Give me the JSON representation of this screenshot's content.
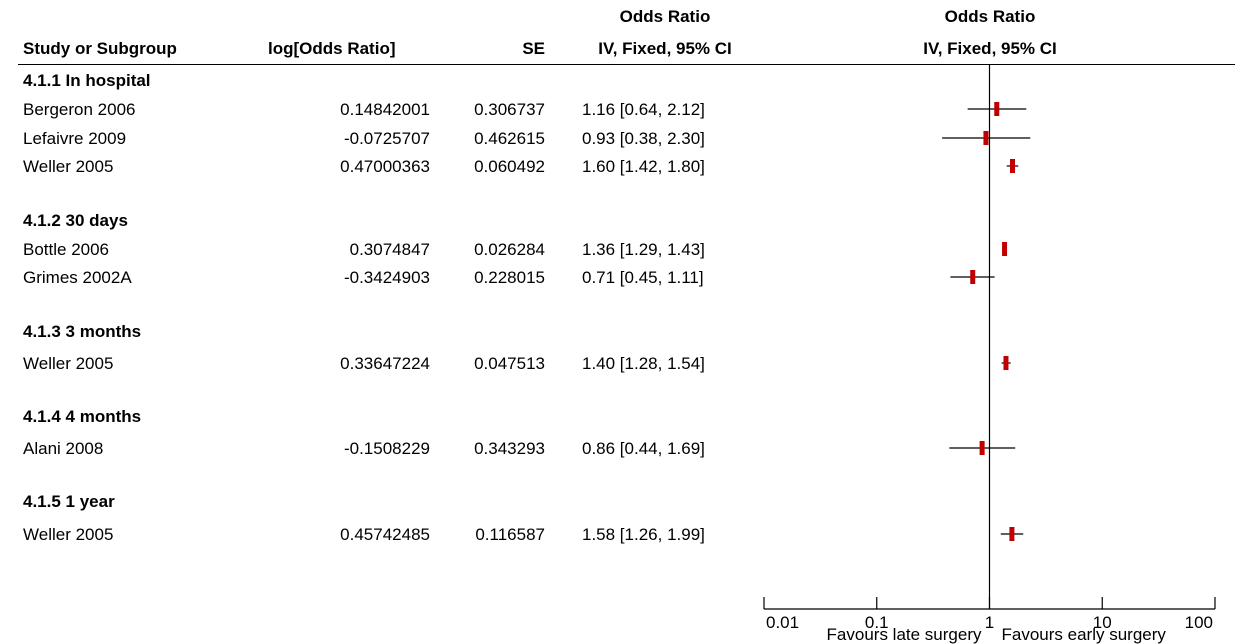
{
  "header": {
    "col_study": "Study or Subgroup",
    "col_log": "log[Odds Ratio]",
    "col_se": "SE",
    "col_or_top": "Odds Ratio",
    "col_or_bottom": "IV, Fixed, 95% CI",
    "plot_top": "Odds Ratio",
    "plot_bottom": "IV, Fixed, 95% CI"
  },
  "groups": [
    {
      "label": "4.1.1 In hospital",
      "studies": [
        {
          "name": "Bergeron 2006",
          "log_or": "0.14842001",
          "se": "0.306737",
          "ci_text": "1.16 [0.64, 2.12]"
        },
        {
          "name": "Lefaivre 2009",
          "log_or": "-0.0725707",
          "se": "0.462615",
          "ci_text": "0.93 [0.38, 2.30]"
        },
        {
          "name": "Weller 2005",
          "log_or": "0.47000363",
          "se": "0.060492",
          "ci_text": "1.60 [1.42, 1.80]"
        }
      ]
    },
    {
      "label": "4.1.2 30 days",
      "studies": [
        {
          "name": "Bottle 2006",
          "log_or": "0.3074847",
          "se": "0.026284",
          "ci_text": "1.36 [1.29, 1.43]"
        },
        {
          "name": "Grimes 2002A",
          "log_or": "-0.3424903",
          "se": "0.228015",
          "ci_text": "0.71 [0.45, 1.11]"
        }
      ]
    },
    {
      "label": "4.1.3 3 months",
      "studies": [
        {
          "name": "Weller 2005",
          "log_or": "0.33647224",
          "se": "0.047513",
          "ci_text": "1.40 [1.28, 1.54]"
        }
      ]
    },
    {
      "label": "4.1.4 4 months",
      "studies": [
        {
          "name": "Alani 2008",
          "log_or": "-0.1508229",
          "se": "0.343293",
          "ci_text": "0.86 [0.44, 1.69]"
        }
      ]
    },
    {
      "label": "4.1.5 1 year",
      "studies": [
        {
          "name": "Weller 2005",
          "log_or": "0.45742485",
          "se": "0.116587",
          "ci_text": "1.58 [1.26, 1.99]"
        }
      ]
    }
  ],
  "chart_data": {
    "type": "forest",
    "scale": "log",
    "xlim": [
      0.01,
      100
    ],
    "ticks": [
      "0.01",
      "0.1",
      "1",
      "10",
      "100"
    ],
    "tick_values": [
      0.01,
      0.1,
      1,
      10,
      100
    ],
    "reference_line": 1,
    "favours_left": "Favours late surgery",
    "favours_right": "Favours early surgery",
    "marker_color": "#c00000",
    "points": [
      {
        "study": "Bergeron 2006",
        "or": 1.16,
        "lo": 0.64,
        "hi": 2.12
      },
      {
        "study": "Lefaivre 2009",
        "or": 0.93,
        "lo": 0.38,
        "hi": 2.3
      },
      {
        "study": "Weller 2005",
        "or": 1.6,
        "lo": 1.42,
        "hi": 1.8
      },
      {
        "study": "Bottle 2006",
        "or": 1.36,
        "lo": 1.29,
        "hi": 1.43
      },
      {
        "study": "Grimes 2002A",
        "or": 0.71,
        "lo": 0.45,
        "hi": 1.11
      },
      {
        "study": "Weller 2005",
        "or": 1.4,
        "lo": 1.28,
        "hi": 1.54
      },
      {
        "study": "Alani 2008",
        "or": 0.86,
        "lo": 0.44,
        "hi": 1.69
      },
      {
        "study": "Weller 2005",
        "or": 1.58,
        "lo": 1.26,
        "hi": 1.99
      }
    ]
  }
}
